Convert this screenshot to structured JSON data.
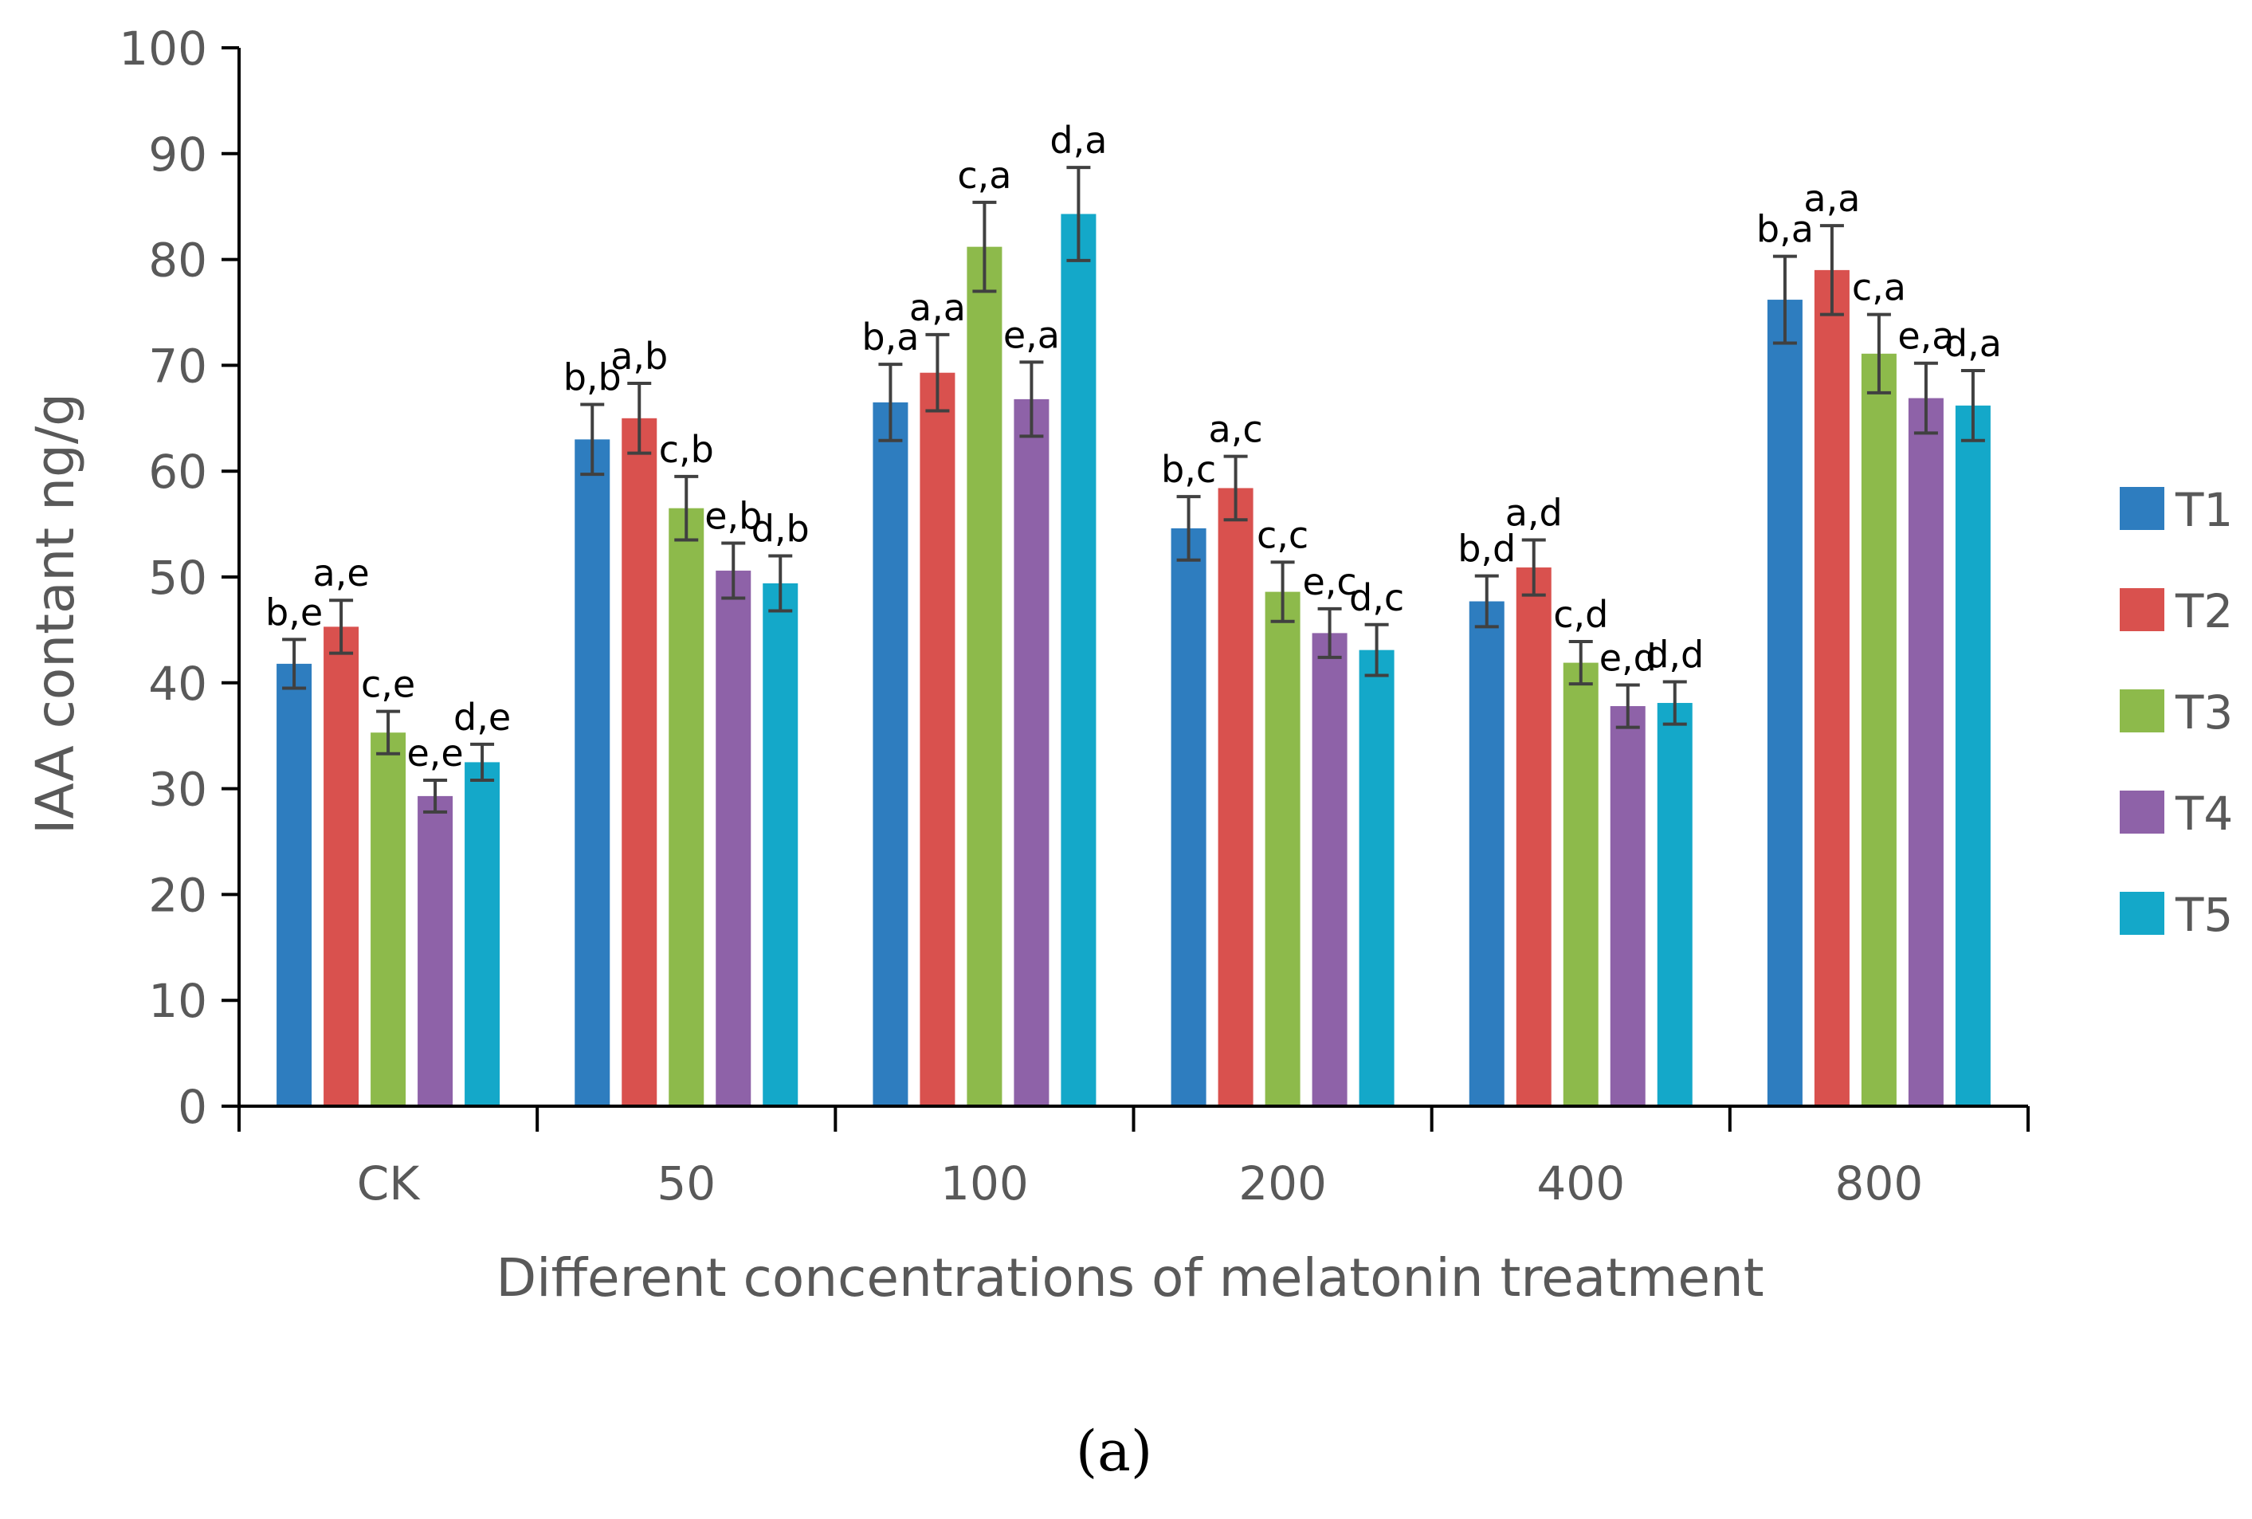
{
  "chart_data": {
    "type": "bar",
    "title": "",
    "xlabel": "Different concentrations of melatonin treatment",
    "ylabel": "IAA contant ng/g",
    "ylim": [
      0,
      100
    ],
    "ytick_step": 10,
    "categories": [
      "CK",
      "50",
      "100",
      "200",
      "400",
      "800"
    ],
    "legend_position": "right",
    "caption": "(a)",
    "series": [
      {
        "name": "T1",
        "color": "#2E7DBF",
        "values": [
          41.8,
          63.0,
          66.5,
          54.6,
          47.7,
          76.2
        ],
        "errors": [
          2.3,
          3.3,
          3.6,
          3.0,
          2.4,
          4.1
        ],
        "labels": [
          "b,e",
          "b,b",
          "b,a",
          "b,c",
          "b,d",
          "b,a"
        ]
      },
      {
        "name": "T2",
        "color": "#D9514E",
        "values": [
          45.3,
          65.0,
          69.3,
          58.4,
          50.9,
          79.0
        ],
        "errors": [
          2.5,
          3.3,
          3.6,
          3.0,
          2.6,
          4.2
        ],
        "labels": [
          "a,e",
          "a,b",
          "a,a",
          "a,c",
          "a,d",
          "a,a"
        ]
      },
      {
        "name": "T3",
        "color": "#8DBA4B",
        "values": [
          35.3,
          56.5,
          81.2,
          48.6,
          41.9,
          71.1
        ],
        "errors": [
          2.0,
          3.0,
          4.2,
          2.8,
          2.0,
          3.7
        ],
        "labels": [
          "c,e",
          "c,b",
          "c,a",
          "c,c",
          "c,d",
          "c,a"
        ]
      },
      {
        "name": "T4",
        "color": "#8E62A8",
        "values": [
          29.3,
          50.6,
          66.8,
          44.7,
          37.8,
          66.9
        ],
        "errors": [
          1.5,
          2.6,
          3.5,
          2.3,
          2.0,
          3.3
        ],
        "labels": [
          "e,e",
          "e,b",
          "e,a",
          "e,c",
          "e,d",
          "e,a"
        ]
      },
      {
        "name": "T5",
        "color": "#14A8C9",
        "values": [
          32.5,
          49.4,
          84.3,
          43.1,
          38.1,
          66.2
        ],
        "errors": [
          1.7,
          2.6,
          4.4,
          2.4,
          2.0,
          3.3
        ],
        "labels": [
          "d,e",
          "d,b",
          "d,a",
          "d,c",
          "d,d",
          "d,a"
        ]
      }
    ]
  }
}
